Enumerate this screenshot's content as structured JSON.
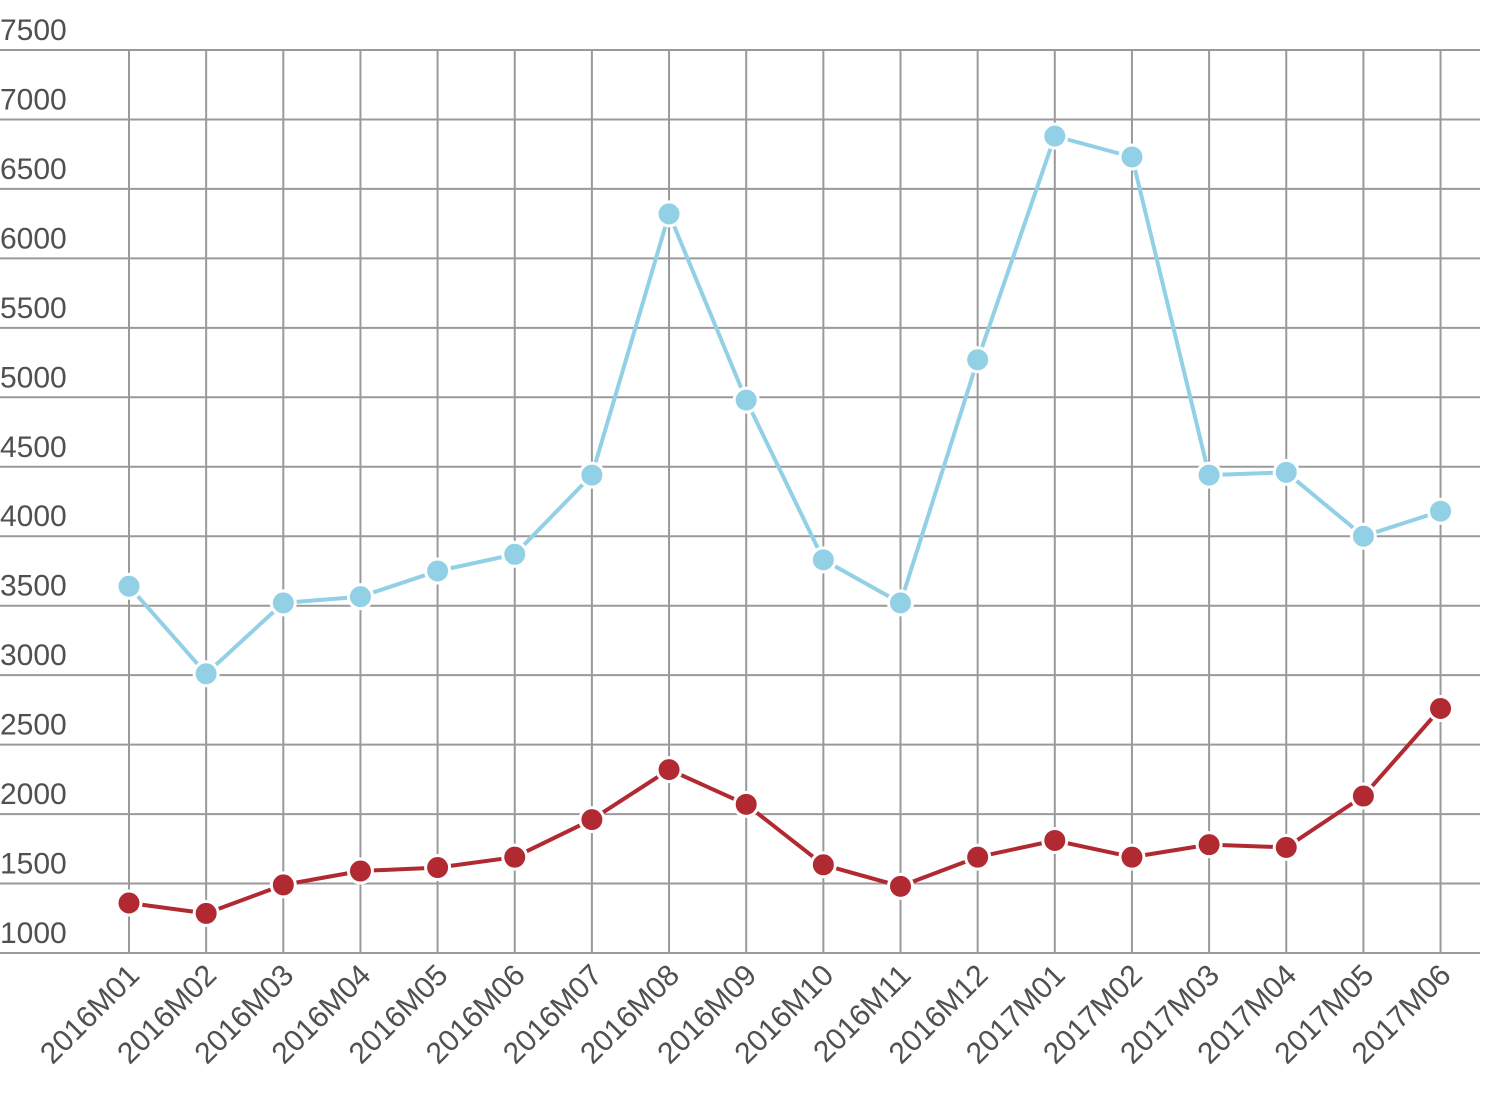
{
  "chart_data": {
    "type": "line",
    "title": "",
    "xlabel": "",
    "ylabel": "",
    "categories": [
      "2016M01",
      "2016M02",
      "2016M03",
      "2016M04",
      "2016M05",
      "2016M06",
      "2016M07",
      "2016M08",
      "2016M09",
      "2016M10",
      "2016M11",
      "2016M12",
      "2017M01",
      "2017M02",
      "2017M03",
      "2017M04",
      "2017M05",
      "2017M06"
    ],
    "y_ticks": [
      1000,
      1500,
      2000,
      2500,
      3000,
      3500,
      4000,
      4500,
      5000,
      5500,
      6000,
      6500,
      7000,
      7500
    ],
    "ylim": [
      1000,
      7500
    ],
    "grid": true,
    "legend": "none",
    "series": [
      {
        "color": "#92d0e6",
        "values": [
          3640,
          3010,
          3520,
          3565,
          3750,
          3870,
          4440,
          6320,
          4980,
          3830,
          3520,
          5270,
          6880,
          6730,
          4440,
          4460,
          4000,
          4180
        ]
      },
      {
        "color": "#b12a31",
        "values": [
          1360,
          1285,
          1490,
          1590,
          1615,
          1690,
          1960,
          2320,
          2070,
          1635,
          1480,
          1690,
          1810,
          1690,
          1780,
          1760,
          2130,
          2760
        ]
      }
    ]
  }
}
